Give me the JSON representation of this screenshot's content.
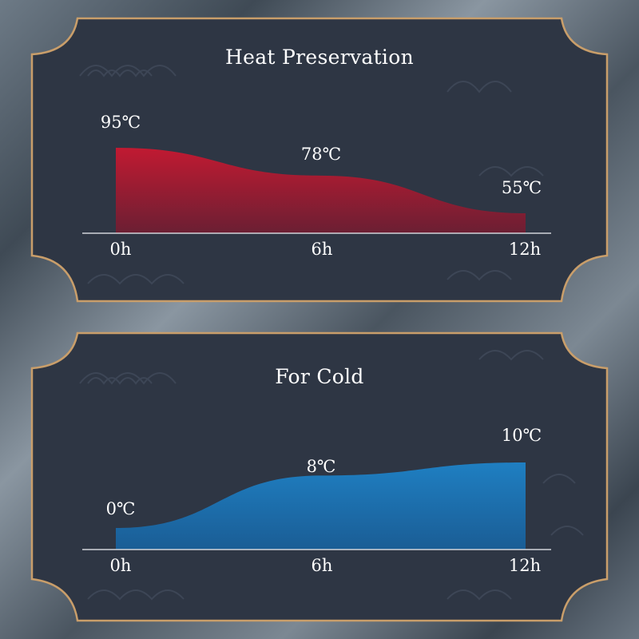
{
  "colors": {
    "panel_bg": "#2e3644",
    "frame": "#c99e6a",
    "axis_line": "#d0d4da",
    "heat_fill": "#c11a32",
    "cold_fill": "#1b73b3",
    "text": "#ffffff"
  },
  "chart_data": [
    {
      "type": "area",
      "title": "Heat Preservation",
      "x": [
        0,
        6,
        12
      ],
      "x_tick_labels": [
        "0h",
        "6h",
        "12h"
      ],
      "values": [
        95,
        78,
        55
      ],
      "value_labels": [
        "95℃",
        "78℃",
        "55℃"
      ],
      "unit": "℃",
      "series_color": "#c11a32"
    },
    {
      "type": "area",
      "title": "For Cold",
      "x": [
        0,
        6,
        12
      ],
      "x_tick_labels": [
        "0h",
        "6h",
        "12h"
      ],
      "values": [
        0,
        8,
        10
      ],
      "value_labels": [
        "0℃",
        "8℃",
        "10℃"
      ],
      "unit": "℃",
      "series_color": "#1b73b3"
    }
  ]
}
